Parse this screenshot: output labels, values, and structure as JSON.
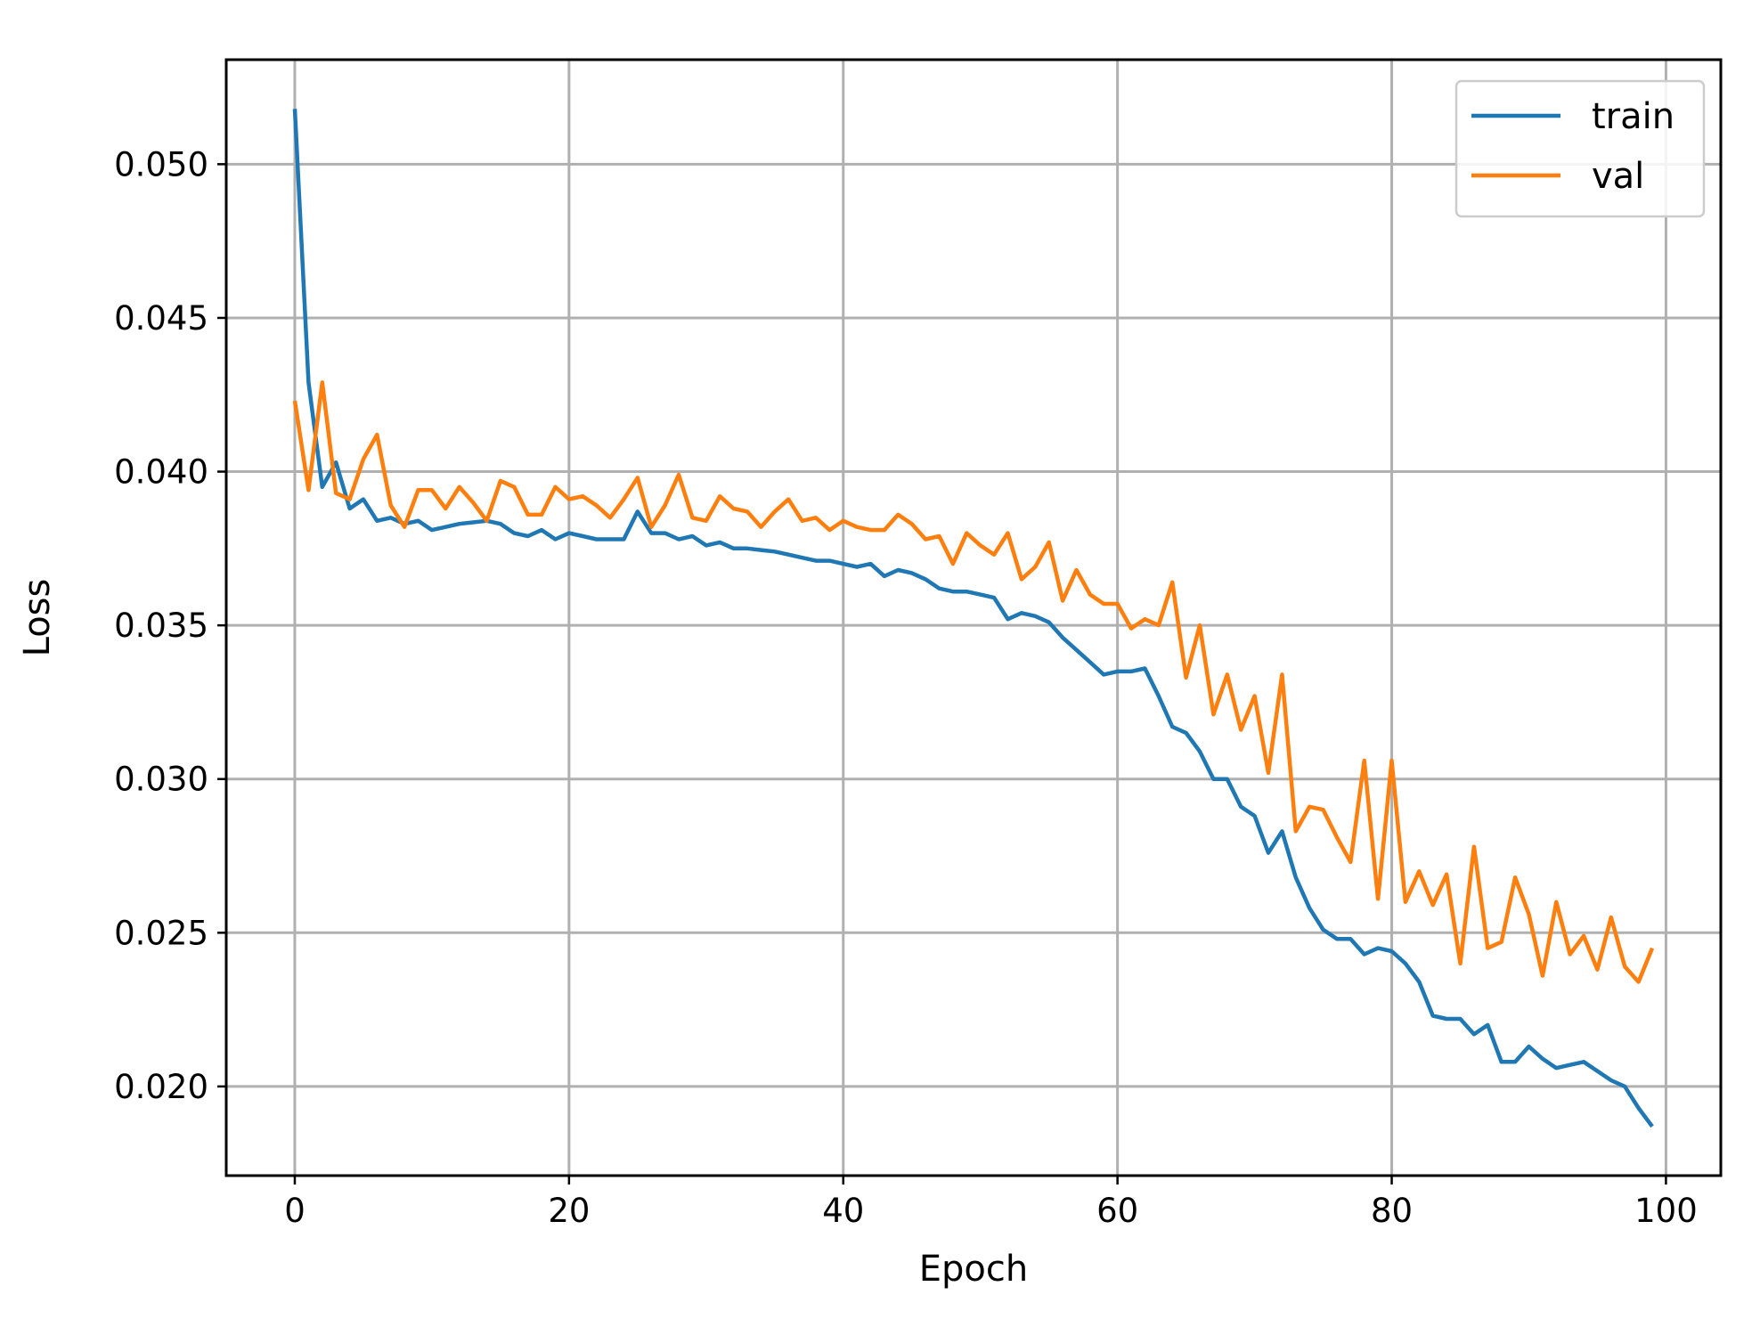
{
  "chart_data": {
    "type": "line",
    "xlabel": "Epoch",
    "ylabel": "Loss",
    "xlim": [
      -5,
      104
    ],
    "ylim": [
      0.0171,
      0.0534
    ],
    "x_ticks": [
      0,
      20,
      40,
      60,
      80,
      100
    ],
    "y_ticks": [
      0.02,
      0.025,
      0.03,
      0.035,
      0.04,
      0.045,
      0.05
    ],
    "x_tick_labels": [
      "0",
      "20",
      "40",
      "60",
      "80",
      "100"
    ],
    "y_tick_labels": [
      "0.020",
      "0.025",
      "0.030",
      "0.035",
      "0.040",
      "0.045",
      "0.050"
    ],
    "grid": true,
    "legend_position": "top-right",
    "series": [
      {
        "name": "train",
        "color": "#1f77b4",
        "values": [
          0.0518,
          0.0429,
          0.0395,
          0.0403,
          0.0388,
          0.0391,
          0.0384,
          0.0385,
          0.0383,
          0.0384,
          0.0381,
          0.0382,
          0.0383,
          0.03835,
          0.0384,
          0.0383,
          0.038,
          0.0379,
          0.0381,
          0.0378,
          0.038,
          0.0379,
          0.0378,
          0.0378,
          0.0378,
          0.0387,
          0.038,
          0.038,
          0.0378,
          0.0379,
          0.0376,
          0.0377,
          0.0375,
          0.0375,
          0.03745,
          0.0374,
          0.0373,
          0.0372,
          0.0371,
          0.0371,
          0.037,
          0.0369,
          0.037,
          0.0366,
          0.0368,
          0.0367,
          0.0365,
          0.0362,
          0.0361,
          0.0361,
          0.036,
          0.0359,
          0.0352,
          0.0354,
          0.0353,
          0.0351,
          0.0346,
          0.0342,
          0.0338,
          0.0334,
          0.0335,
          0.0335,
          0.0336,
          0.0327,
          0.0317,
          0.0315,
          0.0309,
          0.03,
          0.03,
          0.0291,
          0.0288,
          0.0276,
          0.0283,
          0.0268,
          0.0258,
          0.0251,
          0.0248,
          0.0248,
          0.0243,
          0.0245,
          0.0244,
          0.024,
          0.0234,
          0.0223,
          0.0222,
          0.0222,
          0.0217,
          0.022,
          0.0208,
          0.0208,
          0.0213,
          0.0209,
          0.0206,
          0.0207,
          0.0208,
          0.0205,
          0.0202,
          0.02,
          0.0193,
          0.0187
        ]
      },
      {
        "name": "val",
        "color": "#ff7f0e",
        "values": [
          0.0423,
          0.0394,
          0.0429,
          0.0393,
          0.0391,
          0.0404,
          0.0412,
          0.0389,
          0.0382,
          0.0394,
          0.0394,
          0.0388,
          0.0395,
          0.039,
          0.0384,
          0.0397,
          0.0395,
          0.0386,
          0.0386,
          0.0395,
          0.0391,
          0.0392,
          0.0389,
          0.0385,
          0.0391,
          0.0398,
          0.0382,
          0.0389,
          0.0399,
          0.0385,
          0.0384,
          0.0392,
          0.0388,
          0.0387,
          0.0382,
          0.0387,
          0.0391,
          0.0384,
          0.0385,
          0.0381,
          0.0384,
          0.0382,
          0.0381,
          0.0381,
          0.0386,
          0.0383,
          0.0378,
          0.0379,
          0.037,
          0.038,
          0.0376,
          0.0373,
          0.038,
          0.0365,
          0.0369,
          0.0377,
          0.0358,
          0.0368,
          0.036,
          0.0357,
          0.0357,
          0.0349,
          0.0352,
          0.035,
          0.0364,
          0.0333,
          0.035,
          0.0321,
          0.0334,
          0.0316,
          0.0327,
          0.0302,
          0.0334,
          0.0283,
          0.0291,
          0.029,
          0.0281,
          0.0273,
          0.0306,
          0.0261,
          0.0306,
          0.026,
          0.027,
          0.0259,
          0.0269,
          0.024,
          0.0278,
          0.0245,
          0.0247,
          0.0268,
          0.0256,
          0.0236,
          0.026,
          0.0243,
          0.0249,
          0.0238,
          0.0255,
          0.0239,
          0.0234,
          0.0245
        ]
      }
    ]
  }
}
